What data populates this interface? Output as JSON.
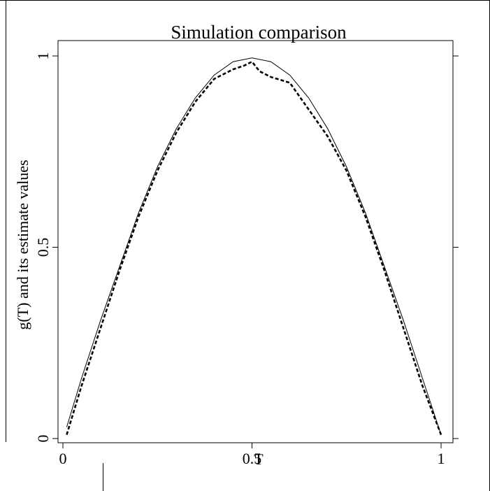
{
  "chart_data": {
    "type": "line",
    "title": "Simulation comparison",
    "xlabel": "T",
    "ylabel": "g(T) and its estimate values",
    "xlim": [
      0,
      1
    ],
    "ylim": [
      0,
      1
    ],
    "xticks": [
      0,
      0.5,
      1
    ],
    "yticks": [
      0,
      0.5,
      1
    ],
    "series": [
      {
        "color": "#000000",
        "style": "solid",
        "x": [
          0.01,
          0.05,
          0.1,
          0.15,
          0.2,
          0.25,
          0.3,
          0.35,
          0.4,
          0.45,
          0.5,
          0.55,
          0.6,
          0.65,
          0.7,
          0.75,
          0.8,
          0.85,
          0.9,
          0.95,
          1.0
        ],
        "values": [
          0.03,
          0.16,
          0.31,
          0.45,
          0.59,
          0.71,
          0.81,
          0.89,
          0.95,
          0.985,
          0.995,
          0.985,
          0.95,
          0.89,
          0.81,
          0.71,
          0.59,
          0.45,
          0.31,
          0.16,
          0.01
        ]
      },
      {
        "color": "#000000",
        "style": "dashed",
        "x": [
          0.01,
          0.05,
          0.1,
          0.15,
          0.2,
          0.25,
          0.3,
          0.35,
          0.4,
          0.45,
          0.48,
          0.5,
          0.52,
          0.55,
          0.6,
          0.65,
          0.7,
          0.75,
          0.8,
          0.85,
          0.9,
          0.95,
          1.0
        ],
        "values": [
          0.01,
          0.14,
          0.29,
          0.44,
          0.58,
          0.7,
          0.8,
          0.88,
          0.94,
          0.965,
          0.975,
          0.985,
          0.96,
          0.945,
          0.93,
          0.86,
          0.79,
          0.7,
          0.58,
          0.44,
          0.29,
          0.14,
          0.01
        ]
      }
    ]
  }
}
